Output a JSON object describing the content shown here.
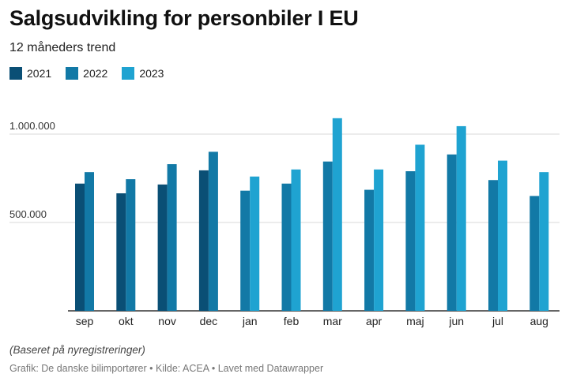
{
  "header": {
    "title": "Salgsudvikling for personbiler I EU",
    "subtitle": "12 måneders trend"
  },
  "colors": {
    "s2021": "#0a4f75",
    "s2022": "#1279a6",
    "s2023": "#1fa3d1",
    "grid": "#d9d9d9",
    "axis": "#333333"
  },
  "chart_data": {
    "type": "bar",
    "title": "Salgsudvikling for personbiler I EU",
    "subtitle": "12 måneders trend",
    "categories": [
      "sep",
      "okt",
      "nov",
      "dec",
      "jan",
      "feb",
      "mar",
      "apr",
      "maj",
      "jun",
      "jul",
      "aug"
    ],
    "series": [
      {
        "name": "2021",
        "values": [
          720000,
          665000,
          715000,
          795000,
          null,
          null,
          null,
          null,
          null,
          null,
          null,
          null
        ]
      },
      {
        "name": "2022",
        "values": [
          785000,
          745000,
          830000,
          900000,
          680000,
          720000,
          845000,
          685000,
          790000,
          885000,
          740000,
          650000
        ]
      },
      {
        "name": "2023",
        "values": [
          null,
          null,
          null,
          null,
          760000,
          800000,
          1090000,
          800000,
          940000,
          1045000,
          850000,
          785000
        ]
      }
    ],
    "ylim": [
      0,
      1200000
    ],
    "yticks": [
      500000,
      1000000
    ],
    "ytick_labels": [
      "500.000",
      "1.000.000"
    ],
    "legend": "top-left",
    "xlabel": "",
    "ylabel": ""
  },
  "footer": {
    "note": "(Baseret på nyregistreringer)",
    "credits": "Grafik: De danske bilimportører • Kilde: ACEA • Lavet med Datawrapper"
  }
}
